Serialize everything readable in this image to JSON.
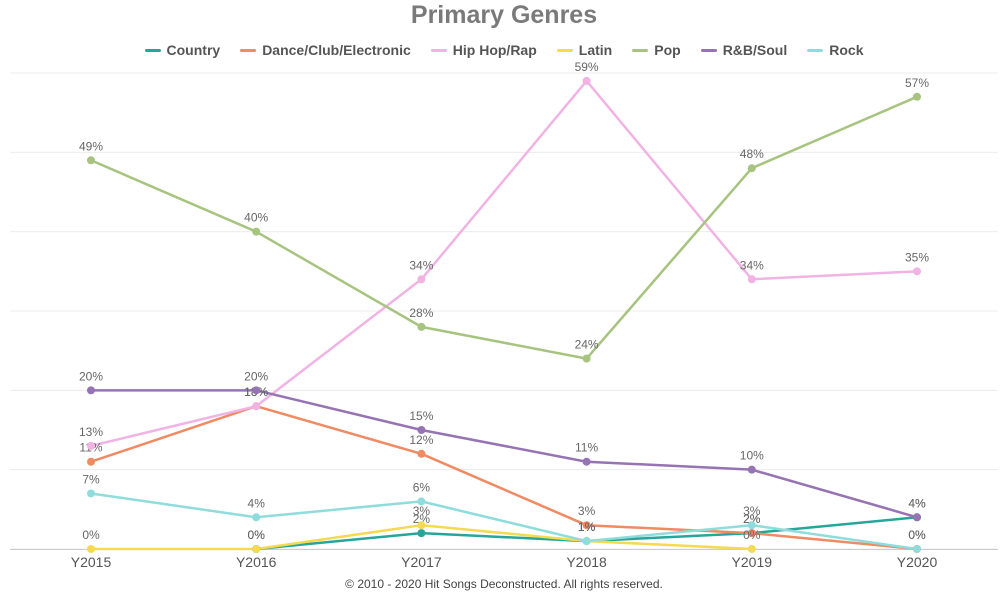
{
  "footer": "© 2010 - 2020 Hit Songs Deconstructed. All rights reserved.",
  "chart_data": {
    "type": "line",
    "title": "Primary Genres",
    "xlabel": "",
    "ylabel": "",
    "categories": [
      "Y2015",
      "Y2016",
      "Y2017",
      "Y2018",
      "Y2019",
      "Y2020"
    ],
    "ylim": [
      0,
      60
    ],
    "grid": true,
    "legend_position": "top",
    "value_suffix": "%",
    "series": [
      {
        "name": "Country",
        "color": "#26a69a",
        "values": [
          null,
          0,
          2,
          1,
          2,
          4
        ]
      },
      {
        "name": "Dance/Club/Electronic",
        "color": "#ef8a62",
        "values": [
          11,
          18,
          12,
          3,
          2,
          0
        ]
      },
      {
        "name": "Hip Hop/Rap",
        "color": "#f0b3e3",
        "values": [
          13,
          18,
          34,
          59,
          34,
          35
        ]
      },
      {
        "name": "Latin",
        "color": "#f5d94e",
        "values": [
          0,
          0,
          3,
          1,
          0,
          null
        ]
      },
      {
        "name": "Pop",
        "color": "#a6c47f",
        "values": [
          49,
          40,
          28,
          24,
          48,
          57
        ]
      },
      {
        "name": "R&B/Soul",
        "color": "#9673b3",
        "values": [
          20,
          20,
          15,
          11,
          10,
          4
        ]
      },
      {
        "name": "Rock",
        "color": "#8fdcdc",
        "values": [
          7,
          4,
          6,
          1,
          3,
          0
        ]
      }
    ]
  }
}
